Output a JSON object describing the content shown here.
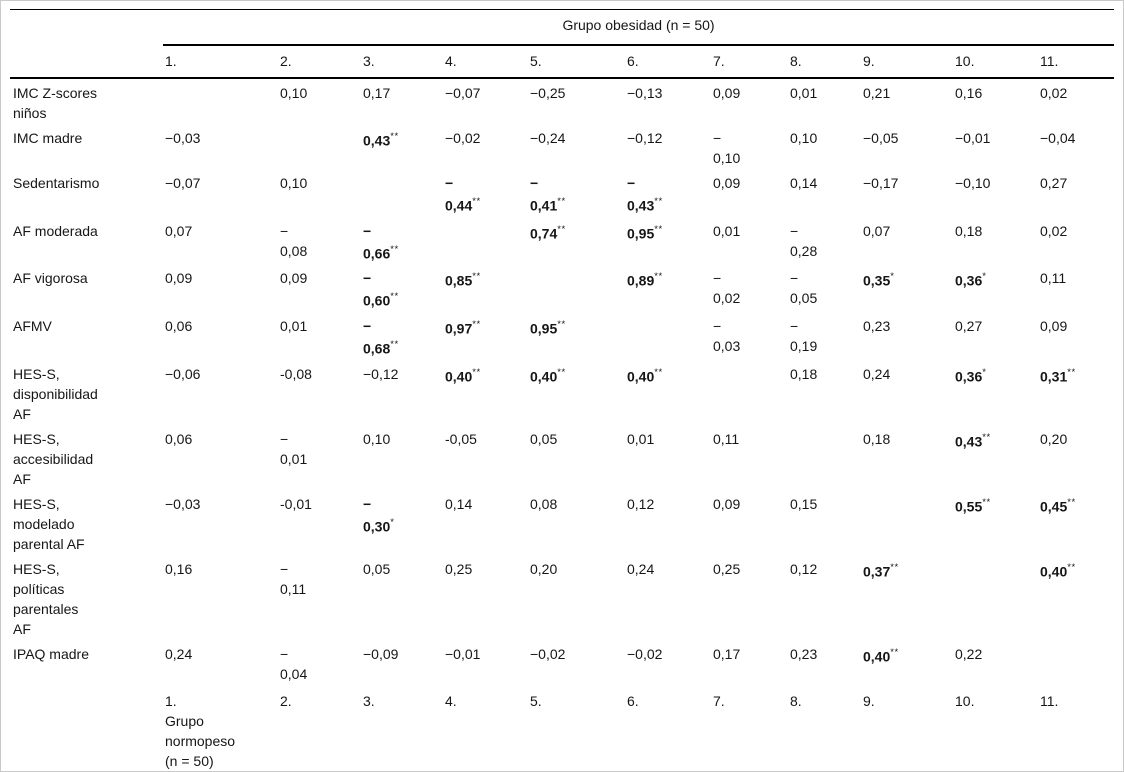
{
  "table": {
    "group_title": "Grupo obesidad (n = 50)",
    "column_headers": [
      "1.",
      "2.",
      "3.",
      "4.",
      "5.",
      "6.",
      "7.",
      "8.",
      "9.",
      "10.",
      "11."
    ],
    "rows": [
      {
        "label": "IMC Z-scores\nniños",
        "cells": [
          {
            "t": ""
          },
          {
            "t": "0,10"
          },
          {
            "t": "0,17"
          },
          {
            "t": "−0,07"
          },
          {
            "t": "−0,25"
          },
          {
            "t": "−0,13"
          },
          {
            "t": "0,09"
          },
          {
            "t": "0,01"
          },
          {
            "t": "0,21"
          },
          {
            "t": "0,16"
          },
          {
            "t": "0,02"
          }
        ]
      },
      {
        "label": "IMC madre",
        "cells": [
          {
            "t": "−0,03"
          },
          {
            "t": ""
          },
          {
            "t": "0,43",
            "s": "**",
            "b": true
          },
          {
            "t": "−0,02"
          },
          {
            "t": "−0,24"
          },
          {
            "t": "−0,12"
          },
          {
            "t": "−\n0,10"
          },
          {
            "t": "0,10"
          },
          {
            "t": "−0,05"
          },
          {
            "t": "−0,01"
          },
          {
            "t": "−0,04"
          }
        ]
      },
      {
        "label": "Sedentarismo",
        "cells": [
          {
            "t": "−0,07"
          },
          {
            "t": "0,10"
          },
          {
            "t": ""
          },
          {
            "t": "−\n0,44",
            "s": "**",
            "b": true
          },
          {
            "t": "−\n0,41",
            "s": "**",
            "b": true
          },
          {
            "t": "−\n0,43",
            "s": "**",
            "b": true
          },
          {
            "t": "0,09"
          },
          {
            "t": "0,14"
          },
          {
            "t": "−0,17"
          },
          {
            "t": "−0,10"
          },
          {
            "t": "0,27"
          }
        ]
      },
      {
        "label": "AF moderada",
        "cells": [
          {
            "t": "0,07"
          },
          {
            "t": "−\n0,08"
          },
          {
            "t": "−\n0,66",
            "s": "**",
            "b": true
          },
          {
            "t": ""
          },
          {
            "t": "0,74",
            "s": "**",
            "b": true
          },
          {
            "t": "0,95",
            "s": "**",
            "b": true
          },
          {
            "t": "0,01"
          },
          {
            "t": "−\n0,28"
          },
          {
            "t": "0,07"
          },
          {
            "t": "0,18"
          },
          {
            "t": "0,02"
          }
        ]
      },
      {
        "label": "AF vigorosa",
        "cells": [
          {
            "t": "0,09"
          },
          {
            "t": "0,09"
          },
          {
            "t": "−\n0,60",
            "s": "**",
            "b": true
          },
          {
            "t": "0,85",
            "s": "**",
            "b": true
          },
          {
            "t": ""
          },
          {
            "t": "0,89",
            "s": "**",
            "b": true
          },
          {
            "t": "−\n0,02"
          },
          {
            "t": "−\n0,05"
          },
          {
            "t": "0,35",
            "s": "*",
            "b": true
          },
          {
            "t": "0,36",
            "s": "*",
            "b": true
          },
          {
            "t": "0,11"
          }
        ]
      },
      {
        "label": "AFMV",
        "cells": [
          {
            "t": "0,06"
          },
          {
            "t": "0,01"
          },
          {
            "t": "−\n0,68",
            "s": "**",
            "b": true
          },
          {
            "t": "0,97",
            "s": "**",
            "b": true
          },
          {
            "t": "0,95",
            "s": "**",
            "b": true
          },
          {
            "t": ""
          },
          {
            "t": "−\n0,03"
          },
          {
            "t": "−\n0,19"
          },
          {
            "t": "0,23"
          },
          {
            "t": "0,27"
          },
          {
            "t": "0,09"
          }
        ]
      },
      {
        "label": "HES-S,\ndisponibilidad\nAF",
        "cells": [
          {
            "t": "−0,06"
          },
          {
            "t": "-0,08"
          },
          {
            "t": "−0,12"
          },
          {
            "t": "0,40",
            "s": "**",
            "b": true
          },
          {
            "t": "0,40",
            "s": "**",
            "b": true
          },
          {
            "t": "0,40",
            "s": "**",
            "b": true
          },
          {
            "t": ""
          },
          {
            "t": "0,18"
          },
          {
            "t": "0,24"
          },
          {
            "t": "0,36",
            "s": "*",
            "b": true
          },
          {
            "t": "0,31",
            "s": "**",
            "b": true
          }
        ]
      },
      {
        "label": "HES-S,\naccesibilidad\nAF",
        "cells": [
          {
            "t": "0,06"
          },
          {
            "t": "−\n0,01"
          },
          {
            "t": "0,10"
          },
          {
            "t": "-0,05"
          },
          {
            "t": "0,05"
          },
          {
            "t": "0,01"
          },
          {
            "t": "0,11"
          },
          {
            "t": ""
          },
          {
            "t": "0,18"
          },
          {
            "t": "0,43",
            "s": "**",
            "b": true
          },
          {
            "t": "0,20"
          }
        ]
      },
      {
        "label": "HES-S,\nmodelado\nparental AF",
        "cells": [
          {
            "t": "−0,03"
          },
          {
            "t": "-0,01"
          },
          {
            "t": "−\n0,30",
            "s": "*",
            "b": true
          },
          {
            "t": "0,14"
          },
          {
            "t": "0,08"
          },
          {
            "t": "0,12"
          },
          {
            "t": "0,09"
          },
          {
            "t": "0,15"
          },
          {
            "t": ""
          },
          {
            "t": "0,55",
            "s": "**",
            "b": true
          },
          {
            "t": "0,45",
            "s": "**",
            "b": true
          }
        ]
      },
      {
        "label": "HES-S,\npolíticas\nparentales\nAF",
        "cells": [
          {
            "t": "0,16"
          },
          {
            "t": "−\n0,11"
          },
          {
            "t": "0,05"
          },
          {
            "t": "0,25"
          },
          {
            "t": "0,20"
          },
          {
            "t": "0,24"
          },
          {
            "t": "0,25"
          },
          {
            "t": "0,12"
          },
          {
            "t": "0,37",
            "s": "**",
            "b": true
          },
          {
            "t": ""
          },
          {
            "t": "0,40",
            "s": "**",
            "b": true
          }
        ]
      },
      {
        "label": "IPAQ madre",
        "cells": [
          {
            "t": "0,24"
          },
          {
            "t": "−\n0,04"
          },
          {
            "t": "−0,09"
          },
          {
            "t": "−0,01"
          },
          {
            "t": "−0,02"
          },
          {
            "t": "−0,02"
          },
          {
            "t": "0,17"
          },
          {
            "t": "0,23"
          },
          {
            "t": "0,40",
            "s": "**",
            "b": true
          },
          {
            "t": "0,22"
          },
          {
            "t": ""
          }
        ]
      }
    ],
    "bottom_row": {
      "label": "",
      "cells": [
        "1.\nGrupo\nnormopeso\n(n = 50)",
        "2.",
        "3.",
        "4.",
        "5.",
        "6.",
        "7.",
        "8.",
        "9.",
        "10.",
        "11."
      ]
    }
  },
  "colors": {
    "text": "#161616",
    "rule": "#000000",
    "background": "#ffffff"
  }
}
